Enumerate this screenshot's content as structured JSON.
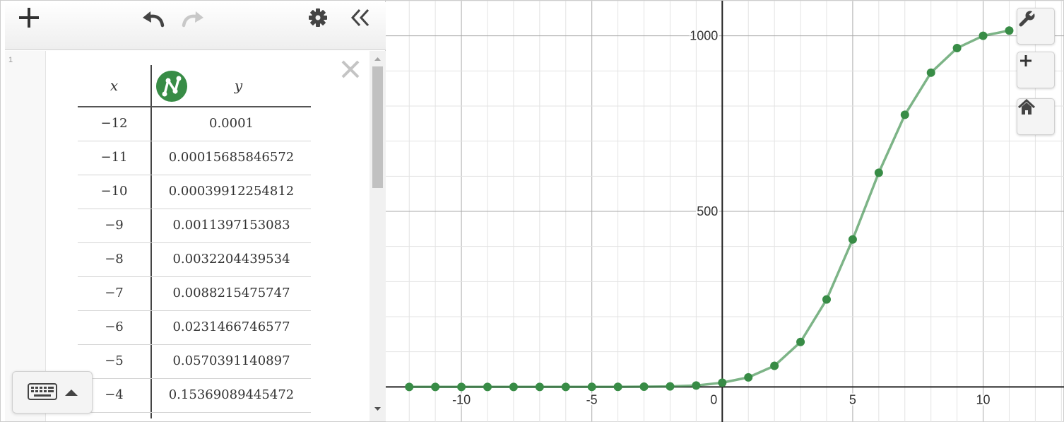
{
  "toolbar": {
    "add_icon": "plus-icon",
    "undo_icon": "undo-icon",
    "redo_icon": "redo-icon",
    "settings_icon": "gear-icon",
    "collapse_icon": "double-chevron-left-icon"
  },
  "expression": {
    "index": "1",
    "delete_icon": "close-icon",
    "table": {
      "headers": {
        "x": "x",
        "y": "y"
      },
      "series_icon": "points-and-lines-icon",
      "rows": [
        {
          "x": "−12",
          "y": "0.0001"
        },
        {
          "x": "−11",
          "y": "0.00015685846572"
        },
        {
          "x": "−10",
          "y": "0.00039912254812"
        },
        {
          "x": "−9",
          "y": "0.0011397153083"
        },
        {
          "x": "−8",
          "y": "0.0032204439534"
        },
        {
          "x": "−7",
          "y": "0.0088215475747"
        },
        {
          "x": "−6",
          "y": "0.0231466746577"
        },
        {
          "x": "−5",
          "y": "0.0570391140897"
        },
        {
          "x": "−4",
          "y": "0.15369089445472"
        }
      ]
    }
  },
  "keypad": {
    "icon": "keyboard-icon",
    "toggle_icon": "caret-up-icon"
  },
  "graph_controls": {
    "settings_icon": "wrench-icon",
    "zoom_in_icon": "plus-icon",
    "home_icon": "home-icon"
  },
  "chart_data": {
    "type": "scatter",
    "connected": true,
    "color": "#388c46",
    "x_ticks": [
      "-10",
      "-5",
      "0",
      "5",
      "10"
    ],
    "y_ticks": [
      "500",
      "1000"
    ],
    "xlim": [
      -12.9,
      13.1
    ],
    "ylim": [
      -102,
      1100
    ],
    "grid": true,
    "series": [
      {
        "x": [
          -12,
          -11,
          -10,
          -9,
          -8,
          -7,
          -6,
          -5,
          -4,
          -3,
          -2,
          -1,
          0,
          1,
          2,
          3,
          4,
          5,
          6,
          7,
          8,
          9,
          10,
          11
        ],
        "y": [
          0.0001,
          0.00016,
          0.0004,
          0.0011,
          0.0032,
          0.0088,
          0.023,
          0.057,
          0.154,
          0.6,
          1.5,
          4,
          12,
          27,
          60,
          128,
          249,
          420,
          610,
          775,
          895,
          965,
          1000,
          1015
        ]
      }
    ]
  }
}
